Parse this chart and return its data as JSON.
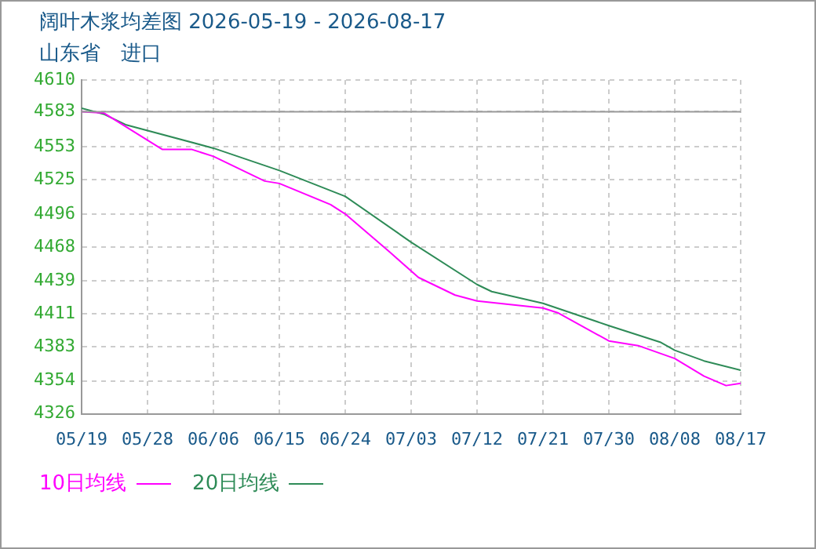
{
  "chart_data": {
    "type": "line",
    "title": "阔叶木浆均差图 2026-05-19 - 2026-08-17",
    "subtitle": "山东省　进口",
    "xlim": [
      "2026-05-19",
      "2026-08-17"
    ],
    "xticks": [
      {
        "value": "2026-05-19",
        "label": "05/19"
      },
      {
        "value": "2026-05-28",
        "label": "05/28"
      },
      {
        "value": "2026-06-06",
        "label": "06/06"
      },
      {
        "value": "2026-06-15",
        "label": "06/15"
      },
      {
        "value": "2026-06-24",
        "label": "06/24"
      },
      {
        "value": "2026-07-03",
        "label": "07/03"
      },
      {
        "value": "2026-07-12",
        "label": "07/12"
      },
      {
        "value": "2026-07-21",
        "label": "07/21"
      },
      {
        "value": "2026-07-30",
        "label": "07/30"
      },
      {
        "value": "2026-08-08",
        "label": "08/08"
      },
      {
        "value": "2026-08-17",
        "label": "08/17"
      }
    ],
    "ylim": [
      4326,
      4610
    ],
    "yticks": [
      4326,
      4354,
      4383,
      4411,
      4439,
      4468,
      4496,
      4525,
      4553,
      4583,
      4610
    ],
    "ref_lines": [
      {
        "axis": "y",
        "value": 4583,
        "color": "#999999",
        "line_style": "solid"
      }
    ],
    "grid": true,
    "legend": "bottom left",
    "marker": "none",
    "line_style": "solid",
    "series": [
      {
        "name": "10日均线",
        "color": "#ff00ff",
        "x": [
          "2026-05-19",
          "2026-05-22",
          "2026-05-30",
          "2026-06-03",
          "2026-06-06",
          "2026-06-13",
          "2026-06-15",
          "2026-06-22",
          "2026-06-24",
          "2026-06-30",
          "2026-07-04",
          "2026-07-09",
          "2026-07-12",
          "2026-07-21",
          "2026-07-23",
          "2026-07-30",
          "2026-08-03",
          "2026-08-08",
          "2026-08-12",
          "2026-08-15",
          "2026-08-17"
        ],
        "values": [
          4583,
          4582,
          4551,
          4551,
          4545,
          4524,
          4522,
          4504,
          4496,
          4464,
          4442,
          4427,
          4422,
          4416,
          4412,
          4388,
          4384,
          4373,
          4358,
          4350,
          4352
        ]
      },
      {
        "name": "20日均线",
        "color": "#2e8b57",
        "x": [
          "2026-05-19",
          "2026-05-22",
          "2026-05-25",
          "2026-06-06",
          "2026-06-15",
          "2026-06-24",
          "2026-07-03",
          "2026-07-12",
          "2026-07-14",
          "2026-07-21",
          "2026-07-30",
          "2026-08-06",
          "2026-08-08",
          "2026-08-12",
          "2026-08-17"
        ],
        "values": [
          4586,
          4581,
          4572,
          4552,
          4533,
          4511,
          4472,
          4436,
          4430,
          4420,
          4401,
          4387,
          4380,
          4371,
          4363
        ]
      }
    ]
  }
}
